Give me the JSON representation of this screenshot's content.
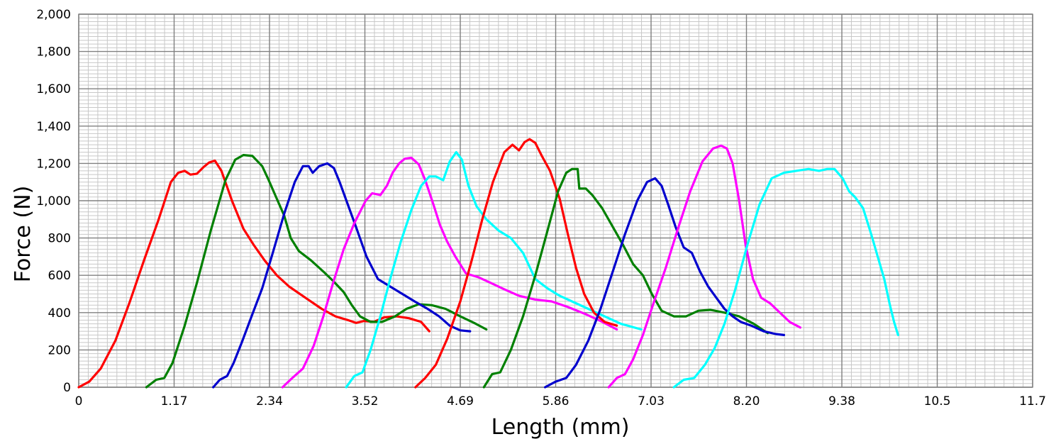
{
  "chart_data": {
    "type": "line",
    "title": "",
    "xlabel": "Length (mm)",
    "ylabel": "Force (N)",
    "xlim": [
      0,
      11.7
    ],
    "ylim": [
      0,
      2000
    ],
    "x_ticks": [
      "0",
      "1.17",
      "2.34",
      "3.52",
      "4.69",
      "5.86",
      "7.03",
      "8.20",
      "9.38",
      "10.5",
      "11.7"
    ],
    "y_ticks": [
      "0",
      "200",
      "400",
      "600",
      "800",
      "1,000",
      "1,200",
      "1,400",
      "1,600",
      "1,800",
      "2,000"
    ],
    "grid": true,
    "legend": "none",
    "series": [
      {
        "color": "#ff0000",
        "x": [
          0.0,
          0.13,
          0.27,
          0.45,
          0.62,
          0.8,
          0.98,
          1.13,
          1.22,
          1.3,
          1.37,
          1.45,
          1.53,
          1.6,
          1.67,
          1.75,
          1.88,
          2.02,
          2.15,
          2.28,
          2.43,
          2.58,
          2.78,
          2.98,
          3.15,
          3.3,
          3.4,
          3.5,
          3.62,
          3.75,
          3.9,
          4.05,
          4.2,
          4.3
        ],
        "y": [
          0,
          30,
          100,
          250,
          450,
          680,
          900,
          1100,
          1150,
          1160,
          1140,
          1145,
          1180,
          1205,
          1215,
          1160,
          1000,
          850,
          760,
          680,
          600,
          540,
          480,
          420,
          380,
          360,
          345,
          355,
          350,
          375,
          380,
          370,
          350,
          300
        ]
      },
      {
        "color": "#008000",
        "x": [
          0.83,
          0.95,
          1.05,
          1.15,
          1.3,
          1.45,
          1.62,
          1.8,
          1.92,
          2.02,
          2.13,
          2.25,
          2.33,
          2.4,
          2.52,
          2.6,
          2.7,
          2.85,
          3.0,
          3.12,
          3.25,
          3.35,
          3.45,
          3.58,
          3.72,
          3.88,
          4.02,
          4.17,
          4.33,
          4.5,
          4.68,
          4.85,
          5.0
        ],
        "y": [
          0,
          40,
          50,
          130,
          330,
          560,
          840,
          1110,
          1220,
          1245,
          1240,
          1185,
          1110,
          1040,
          920,
          800,
          730,
          680,
          620,
          570,
          510,
          440,
          380,
          350,
          350,
          380,
          420,
          445,
          440,
          420,
          380,
          345,
          310
        ]
      },
      {
        "color": "#0000cd",
        "x": [
          1.65,
          1.73,
          1.82,
          1.9,
          2.0,
          2.12,
          2.25,
          2.38,
          2.52,
          2.65,
          2.75,
          2.82,
          2.87,
          2.95,
          3.05,
          3.13,
          3.2,
          3.3,
          3.4,
          3.53,
          3.67,
          3.82,
          3.97,
          4.12,
          4.28,
          4.42,
          4.55,
          4.68,
          4.8
        ],
        "y": [
          0,
          40,
          60,
          130,
          240,
          380,
          530,
          720,
          930,
          1100,
          1185,
          1185,
          1150,
          1185,
          1200,
          1175,
          1100,
          980,
          860,
          700,
          580,
          540,
          500,
          460,
          420,
          380,
          330,
          305,
          300
        ]
      },
      {
        "color": "#ff00ff",
        "x": [
          2.5,
          2.62,
          2.75,
          2.88,
          3.0,
          3.12,
          3.25,
          3.38,
          3.52,
          3.6,
          3.7,
          3.78,
          3.85,
          3.93,
          4.0,
          4.08,
          4.17,
          4.25,
          4.35,
          4.43,
          4.52,
          4.62,
          4.75,
          4.9,
          5.05,
          5.22,
          5.4,
          5.6,
          5.8,
          6.0,
          6.2,
          6.4,
          6.6
        ],
        "y": [
          0,
          50,
          100,
          220,
          380,
          560,
          740,
          880,
          1000,
          1040,
          1030,
          1080,
          1150,
          1200,
          1225,
          1230,
          1195,
          1110,
          980,
          870,
          780,
          700,
          610,
          590,
          560,
          525,
          490,
          470,
          460,
          430,
          395,
          355,
          310
        ]
      },
      {
        "color": "#00ffff",
        "x": [
          3.28,
          3.38,
          3.48,
          3.58,
          3.7,
          3.82,
          3.95,
          4.08,
          4.2,
          4.3,
          4.38,
          4.47,
          4.55,
          4.63,
          4.7,
          4.78,
          4.88,
          5.0,
          5.15,
          5.3,
          5.45,
          5.6,
          5.75,
          5.9,
          6.05,
          6.25,
          6.45,
          6.65,
          6.9
        ],
        "y": [
          0,
          60,
          80,
          200,
          380,
          580,
          780,
          950,
          1080,
          1130,
          1130,
          1110,
          1210,
          1260,
          1220,
          1080,
          970,
          900,
          840,
          800,
          720,
          580,
          530,
          490,
          460,
          420,
          380,
          340,
          310
        ]
      },
      {
        "color": "#ff0000",
        "x": [
          4.13,
          4.25,
          4.38,
          4.52,
          4.68,
          4.82,
          4.95,
          5.08,
          5.22,
          5.32,
          5.4,
          5.47,
          5.53,
          5.6,
          5.68,
          5.78,
          5.9,
          6.0,
          6.1,
          6.2,
          6.32,
          6.45,
          6.6
        ],
        "y": [
          0,
          50,
          120,
          260,
          460,
          680,
          900,
          1100,
          1260,
          1300,
          1270,
          1315,
          1330,
          1310,
          1240,
          1160,
          1010,
          820,
          640,
          500,
          400,
          350,
          330
        ]
      },
      {
        "color": "#008000",
        "x": [
          4.97,
          5.07,
          5.17,
          5.3,
          5.45,
          5.6,
          5.75,
          5.88,
          5.98,
          6.05,
          6.12,
          6.14,
          6.22,
          6.3,
          6.42,
          6.55,
          6.68,
          6.8,
          6.92,
          7.03,
          7.15,
          7.3,
          7.45,
          7.6,
          7.75,
          7.92,
          8.1,
          8.28,
          8.45
        ],
        "y": [
          0,
          70,
          80,
          200,
          380,
          600,
          840,
          1050,
          1150,
          1170,
          1170,
          1065,
          1065,
          1030,
          960,
          860,
          760,
          660,
          600,
          500,
          410,
          380,
          380,
          410,
          415,
          400,
          380,
          340,
          290
        ]
      },
      {
        "color": "#0000cd",
        "x": [
          5.72,
          5.85,
          5.98,
          6.1,
          6.25,
          6.4,
          6.55,
          6.7,
          6.85,
          6.97,
          7.07,
          7.15,
          7.23,
          7.32,
          7.42,
          7.52,
          7.62,
          7.72,
          7.82,
          7.92,
          8.02,
          8.12,
          8.25,
          8.4,
          8.55,
          8.65
        ],
        "y": [
          0,
          30,
          50,
          120,
          250,
          420,
          620,
          820,
          1000,
          1100,
          1120,
          1080,
          980,
          860,
          750,
          720,
          620,
          540,
          480,
          420,
          380,
          350,
          330,
          300,
          285,
          280
        ]
      },
      {
        "color": "#ff00ff",
        "x": [
          6.5,
          6.6,
          6.7,
          6.8,
          6.92,
          7.05,
          7.2,
          7.35,
          7.5,
          7.65,
          7.78,
          7.88,
          7.95,
          8.02,
          8.1,
          8.18,
          8.27,
          8.37,
          8.48,
          8.6,
          8.72,
          8.85
        ],
        "y": [
          0,
          50,
          70,
          150,
          280,
          450,
          640,
          850,
          1050,
          1210,
          1280,
          1295,
          1280,
          1200,
          1000,
          760,
          580,
          480,
          450,
          400,
          350,
          320
        ]
      },
      {
        "color": "#00ffff",
        "x": [
          7.3,
          7.42,
          7.55,
          7.68,
          7.8,
          7.92,
          8.05,
          8.2,
          8.35,
          8.5,
          8.65,
          8.8,
          8.95,
          9.08,
          9.18,
          9.27,
          9.37,
          9.45,
          9.52,
          9.62,
          9.72,
          9.8,
          9.88,
          9.95,
          10.0,
          10.05
        ],
        "y": [
          0,
          40,
          50,
          120,
          210,
          340,
          520,
          760,
          980,
          1120,
          1150,
          1160,
          1170,
          1160,
          1170,
          1170,
          1120,
          1050,
          1020,
          960,
          820,
          700,
          580,
          440,
          350,
          280
        ]
      }
    ]
  }
}
